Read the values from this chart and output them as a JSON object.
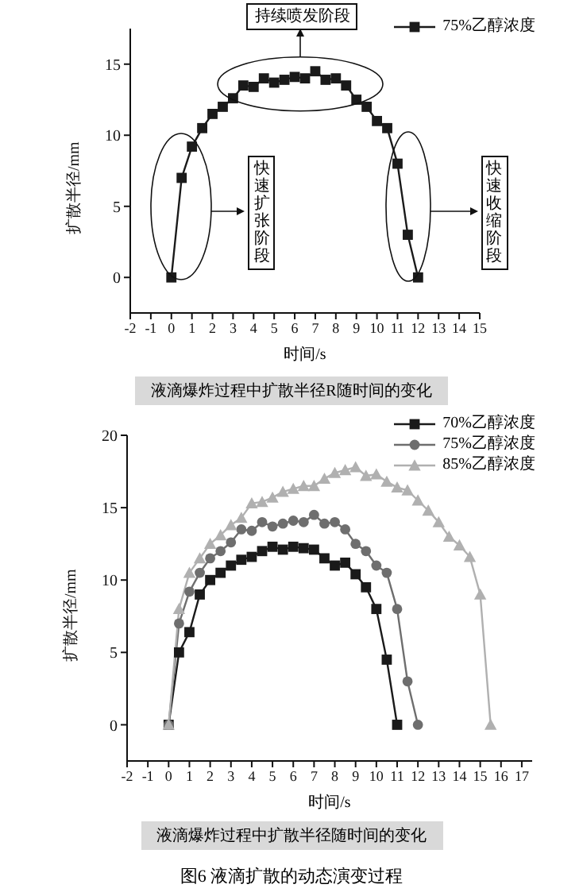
{
  "chart_data": [
    {
      "type": "line",
      "xlabel": "时间/s",
      "ylabel": "扩散半径/mm",
      "xlim": [
        -2,
        15
      ],
      "ylim": [
        -2.5,
        17.5
      ],
      "xticks": [
        -2,
        -1,
        0,
        1,
        2,
        3,
        4,
        5,
        6,
        7,
        8,
        9,
        10,
        11,
        12,
        13,
        14,
        15
      ],
      "yticks": [
        0,
        5,
        10,
        15
      ],
      "grid": false,
      "legend": "top right",
      "marker": "square",
      "x": [
        0,
        0.5,
        1,
        1.5,
        2,
        2.5,
        3,
        3.5,
        4,
        4.5,
        5,
        5.5,
        6,
        6.5,
        7,
        7.5,
        8,
        8.5,
        9,
        9.5,
        10,
        10.5,
        11,
        11.5,
        12
      ],
      "series": [
        {
          "name": "75%乙醇浓度",
          "color": "#1a1a1a",
          "values": [
            0,
            7,
            9.2,
            10.5,
            11.5,
            12,
            12.6,
            13.5,
            13.4,
            14,
            13.7,
            13.9,
            14.1,
            14,
            14.5,
            13.9,
            14,
            13.5,
            12.5,
            12,
            11,
            10.5,
            8,
            3,
            0
          ]
        }
      ],
      "annotations": [
        "持续喷发阶段",
        "快速扩张阶段",
        "快速收缩阶段",
        "液滴爆炸过程中扩散半径R随时间的变化"
      ]
    },
    {
      "type": "line",
      "xlabel": "时间/s",
      "ylabel": "扩散半径/mm",
      "xlim": [
        -2,
        17.5
      ],
      "ylim": [
        -2.5,
        20
      ],
      "xticks": [
        -2,
        -1,
        0,
        1,
        2,
        3,
        4,
        5,
        6,
        7,
        8,
        9,
        10,
        11,
        12,
        13,
        14,
        15,
        16,
        17
      ],
      "yticks": [
        0,
        5,
        10,
        15,
        20
      ],
      "grid": false,
      "legend": "top right",
      "series": [
        {
          "name": "70%乙醇浓度",
          "color": "#1a1a1a",
          "marker": "square",
          "x": [
            0,
            0.5,
            1,
            1.5,
            2,
            2.5,
            3,
            3.5,
            4,
            4.5,
            5,
            5.5,
            6,
            6.5,
            7,
            7.5,
            8,
            8.5,
            9,
            9.5,
            10,
            10.5,
            11
          ],
          "values": [
            0,
            5,
            6.4,
            9,
            10,
            10.5,
            11,
            11.4,
            11.6,
            12,
            12.3,
            12.1,
            12.3,
            12.2,
            12.1,
            11.5,
            11,
            11.2,
            10.4,
            9.5,
            8,
            4.5,
            0
          ]
        },
        {
          "name": "75%乙醇浓度",
          "color": "#6e6e6e",
          "marker": "circle",
          "x": [
            0,
            0.5,
            1,
            1.5,
            2,
            2.5,
            3,
            3.5,
            4,
            4.5,
            5,
            5.5,
            6,
            6.5,
            7,
            7.5,
            8,
            8.5,
            9,
            9.5,
            10,
            10.5,
            11,
            11.5,
            12
          ],
          "values": [
            0,
            7,
            9.2,
            10.5,
            11.5,
            12,
            12.6,
            13.5,
            13.4,
            14,
            13.7,
            13.9,
            14.1,
            14,
            14.5,
            13.9,
            14,
            13.5,
            12.5,
            12,
            11,
            10.5,
            8,
            3,
            0
          ]
        },
        {
          "name": "85%乙醇浓度",
          "color": "#b0b0b0",
          "marker": "triangle",
          "x": [
            0,
            0.5,
            1,
            1.5,
            2,
            2.5,
            3,
            3.5,
            4,
            4.5,
            5,
            5.5,
            6,
            6.5,
            7,
            7.5,
            8,
            8.5,
            9,
            9.5,
            10,
            10.5,
            11,
            11.5,
            12,
            12.5,
            13,
            13.5,
            14,
            14.5,
            15,
            15.5
          ],
          "values": [
            0,
            8,
            10.5,
            11.5,
            12.5,
            13.1,
            13.8,
            14.3,
            15.3,
            15.4,
            15.7,
            16.1,
            16.3,
            16.5,
            16.5,
            17,
            17.4,
            17.6,
            17.8,
            17.2,
            17.3,
            16.8,
            16.4,
            16.2,
            15.5,
            14.8,
            14,
            13,
            12.4,
            11.6,
            9,
            0
          ]
        }
      ],
      "annotations": [
        "液滴爆炸过程中扩散半径随时间的变化",
        "图6  液滴扩散的动态演变过程"
      ]
    }
  ]
}
